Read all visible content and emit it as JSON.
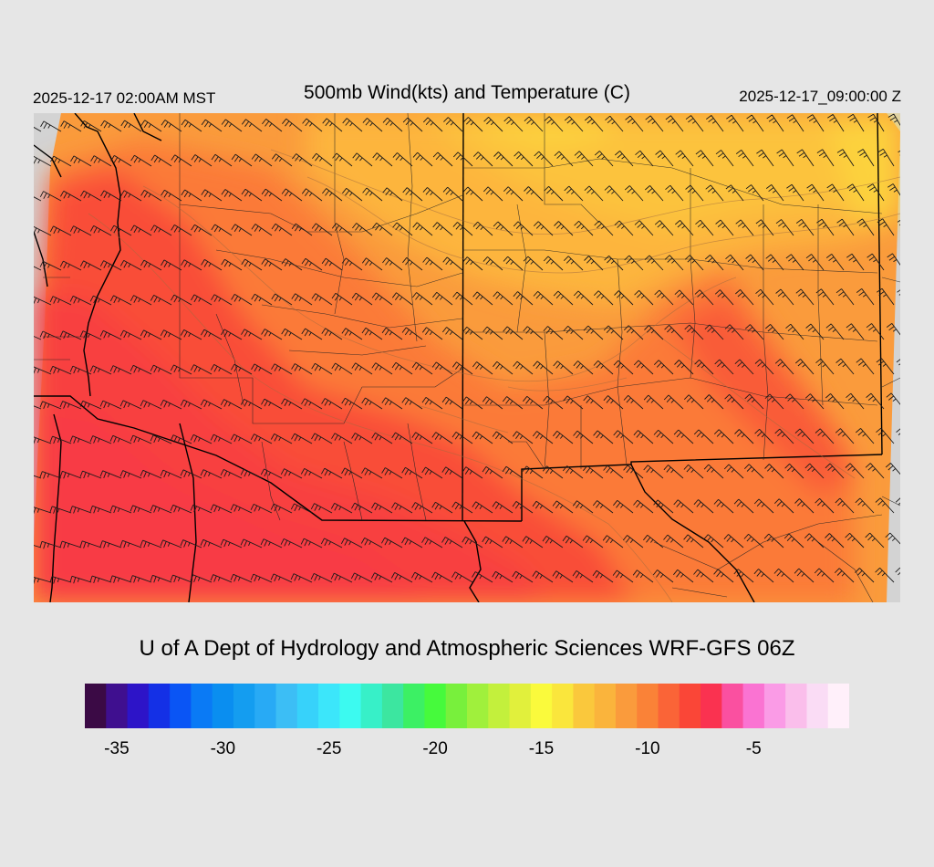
{
  "header": {
    "local_time": "2025-12-17 02:00AM MST",
    "title": "500mb Wind(kts) and Temperature (C)",
    "utc_time": "2025-12-17_09:00:00 Z"
  },
  "credit": "U of A Dept of Hydrology and Atmospheric Sciences WRF-GFS 06Z",
  "colors": {
    "background": "#e6e6e6",
    "map_nodata": "#d3d3d3",
    "border": "#000000"
  },
  "colorbar": {
    "min": -36,
    "max": -1,
    "step": 1,
    "colors": [
      "#3b0a45",
      "#3f0f8f",
      "#2d14c8",
      "#1430e6",
      "#0a55f5",
      "#0a7af5",
      "#0a8ef0",
      "#149df0",
      "#28aaf5",
      "#3cbef5",
      "#37d2fa",
      "#3ce6fa",
      "#3cfaf0",
      "#37f0c8",
      "#3ce6a0",
      "#3cf064",
      "#46fa3c",
      "#78f03c",
      "#a0f03c",
      "#c3f03c",
      "#e1f03c",
      "#fafa3c",
      "#fae63c",
      "#fac83c",
      "#fab43c",
      "#fa9b3c",
      "#fa8237",
      "#fa6437",
      "#fa4637",
      "#fa3250",
      "#fa50a0",
      "#fa73d2",
      "#fa9be6",
      "#fabeeb",
      "#fadcf5",
      "#fff0fa"
    ],
    "tick_labels": [
      {
        "value": -35,
        "text": "-35"
      },
      {
        "value": -30,
        "text": "-30"
      },
      {
        "value": -25,
        "text": "-25"
      },
      {
        "value": -20,
        "text": "-20"
      },
      {
        "value": -15,
        "text": "-15"
      },
      {
        "value": -10,
        "text": "-10"
      },
      {
        "value": -5,
        "text": "-5"
      }
    ]
  },
  "map": {
    "field": "500mb temperature (C) with wind barbs (kts)",
    "barb_style": {
      "color": "#1a1a1a"
    }
  }
}
